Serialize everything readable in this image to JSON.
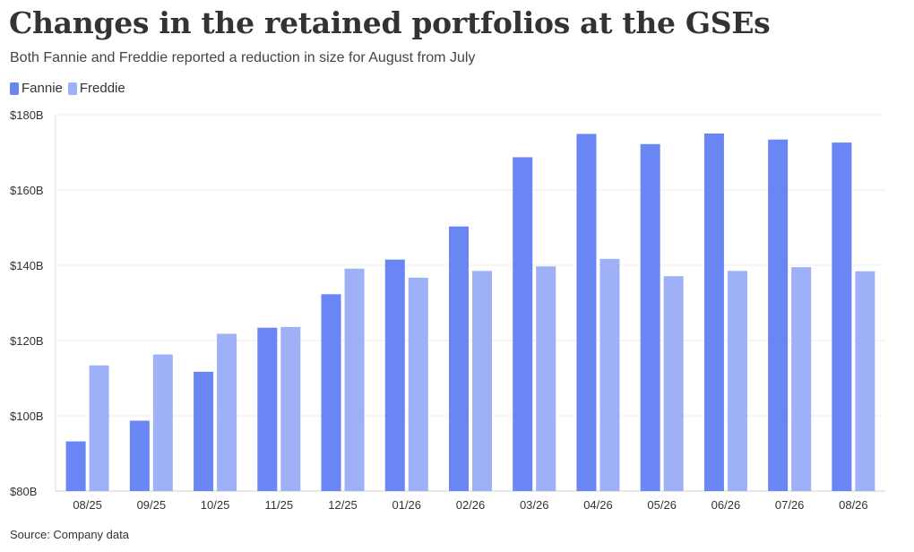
{
  "title": "Changes in the retained portfolios at the GSEs",
  "subtitle": "Both Fannie and Freddie reported a reduction in size for August from July",
  "source": "Source: Company data",
  "legend": [
    {
      "label": "Fannie",
      "color": "#6a85f4"
    },
    {
      "label": "Freddie",
      "color": "#9eb1f7"
    }
  ],
  "chart_data": {
    "type": "bar",
    "title": "Changes in the retained portfolios at the GSEs",
    "xlabel": "",
    "ylabel": "",
    "categories": [
      "08/25",
      "09/25",
      "10/25",
      "11/25",
      "12/25",
      "01/26",
      "02/26",
      "03/26",
      "04/26",
      "05/26",
      "06/26",
      "07/26",
      "08/26"
    ],
    "series": [
      {
        "name": "Fannie",
        "color": "#6a85f4",
        "values": [
          93.2,
          98.7,
          111.7,
          123.4,
          132.3,
          141.5,
          150.3,
          168.7,
          174.9,
          172.2,
          175.0,
          173.4,
          172.6
        ]
      },
      {
        "name": "Freddie",
        "color": "#9eb1f7",
        "values": [
          113.4,
          116.3,
          121.8,
          123.6,
          139.1,
          136.7,
          138.5,
          139.7,
          141.7,
          137.1,
          138.5,
          139.5,
          138.4
        ]
      }
    ],
    "ylim": [
      80,
      180
    ],
    "yticks": [
      80,
      100,
      120,
      140,
      160,
      180
    ],
    "ytick_labels": [
      "$80B",
      "$100B",
      "$120B",
      "$140B",
      "$160B",
      "$180B"
    ],
    "grid": true,
    "legend_position": "top-left"
  }
}
